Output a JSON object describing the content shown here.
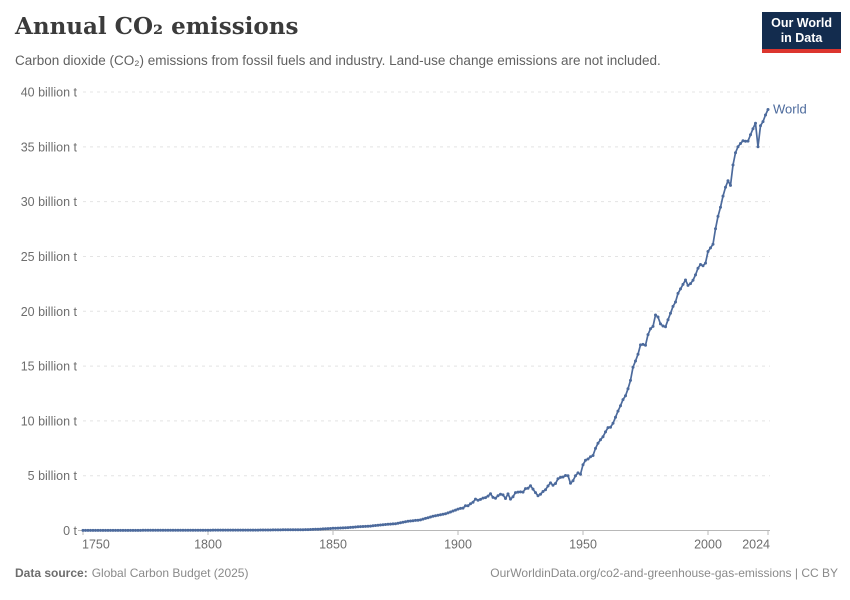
{
  "header": {
    "title": "Annual CO₂ emissions",
    "subtitle": "Carbon dioxide (CO₂) emissions from fossil fuels and industry. Land-use change emissions are not included.",
    "logo_line1": "Our World",
    "logo_line2": "in Data"
  },
  "footer": {
    "source_label": "Data source:",
    "source_value": "Global Carbon Budget (2025)",
    "attribution": "OurWorldinData.org/co2-and-greenhouse-gas-emissions | CC BY"
  },
  "colors": {
    "series": "#4c6a9c",
    "grid": "#e4e4e4",
    "axis": "#b8b8b8",
    "logo_navy": "#132c4e",
    "logo_red": "#dc352e"
  },
  "chart_data": {
    "type": "line",
    "title": "Annual CO₂ emissions",
    "xlabel": "",
    "ylabel": "",
    "xlim": [
      1750,
      2024
    ],
    "ylim": [
      0,
      40
    ],
    "grid": "horizontal-dashed",
    "legend_position": "end-of-line-label",
    "xticks": [
      1750,
      1800,
      1850,
      1900,
      1950,
      2000,
      2024
    ],
    "yticks": [
      {
        "value": 0,
        "label": "0 t"
      },
      {
        "value": 5,
        "label": "5 billion t"
      },
      {
        "value": 10,
        "label": "10 billion t"
      },
      {
        "value": 15,
        "label": "15 billion t"
      },
      {
        "value": 20,
        "label": "20 billion t"
      },
      {
        "value": 25,
        "label": "25 billion t"
      },
      {
        "value": 30,
        "label": "30 billion t"
      },
      {
        "value": 35,
        "label": "35 billion t"
      },
      {
        "value": 40,
        "label": "40 billion t"
      }
    ],
    "series": [
      {
        "name": "World",
        "color": "#4c6a9c",
        "unit": "billion tonnes CO₂",
        "points": [
          [
            1750,
            0.01
          ],
          [
            1760,
            0.01
          ],
          [
            1770,
            0.01
          ],
          [
            1780,
            0.02
          ],
          [
            1790,
            0.02
          ],
          [
            1800,
            0.03
          ],
          [
            1810,
            0.04
          ],
          [
            1820,
            0.04
          ],
          [
            1830,
            0.06
          ],
          [
            1840,
            0.08
          ],
          [
            1845,
            0.13
          ],
          [
            1850,
            0.2
          ],
          [
            1855,
            0.25
          ],
          [
            1860,
            0.34
          ],
          [
            1865,
            0.4
          ],
          [
            1870,
            0.53
          ],
          [
            1875,
            0.62
          ],
          [
            1880,
            0.84
          ],
          [
            1885,
            0.97
          ],
          [
            1890,
            1.3
          ],
          [
            1895,
            1.52
          ],
          [
            1900,
            1.95
          ],
          [
            1901,
            2.02
          ],
          [
            1902,
            2.04
          ],
          [
            1903,
            2.25
          ],
          [
            1904,
            2.26
          ],
          [
            1905,
            2.44
          ],
          [
            1906,
            2.58
          ],
          [
            1907,
            2.86
          ],
          [
            1908,
            2.76
          ],
          [
            1909,
            2.84
          ],
          [
            1910,
            2.96
          ],
          [
            1911,
            3.0
          ],
          [
            1912,
            3.14
          ],
          [
            1913,
            3.35
          ],
          [
            1914,
            3.02
          ],
          [
            1915,
            2.95
          ],
          [
            1916,
            3.17
          ],
          [
            1917,
            3.31
          ],
          [
            1918,
            3.25
          ],
          [
            1919,
            2.92
          ],
          [
            1920,
            3.34
          ],
          [
            1921,
            2.86
          ],
          [
            1922,
            3.08
          ],
          [
            1923,
            3.46
          ],
          [
            1924,
            3.5
          ],
          [
            1925,
            3.52
          ],
          [
            1926,
            3.5
          ],
          [
            1927,
            3.82
          ],
          [
            1928,
            3.86
          ],
          [
            1929,
            4.08
          ],
          [
            1930,
            3.78
          ],
          [
            1931,
            3.46
          ],
          [
            1932,
            3.17
          ],
          [
            1933,
            3.31
          ],
          [
            1934,
            3.56
          ],
          [
            1935,
            3.72
          ],
          [
            1936,
            4.06
          ],
          [
            1937,
            4.34
          ],
          [
            1938,
            4.13
          ],
          [
            1939,
            4.29
          ],
          [
            1940,
            4.72
          ],
          [
            1941,
            4.84
          ],
          [
            1942,
            4.88
          ],
          [
            1943,
            5.02
          ],
          [
            1944,
            5.0
          ],
          [
            1945,
            4.31
          ],
          [
            1946,
            4.54
          ],
          [
            1947,
            5.0
          ],
          [
            1948,
            5.25
          ],
          [
            1949,
            5.14
          ],
          [
            1950,
            6.0
          ],
          [
            1951,
            6.4
          ],
          [
            1952,
            6.52
          ],
          [
            1953,
            6.72
          ],
          [
            1954,
            6.84
          ],
          [
            1955,
            7.49
          ],
          [
            1956,
            7.96
          ],
          [
            1957,
            8.28
          ],
          [
            1958,
            8.56
          ],
          [
            1959,
            8.99
          ],
          [
            1960,
            9.39
          ],
          [
            1961,
            9.42
          ],
          [
            1962,
            9.78
          ],
          [
            1963,
            10.33
          ],
          [
            1964,
            10.89
          ],
          [
            1965,
            11.38
          ],
          [
            1966,
            11.94
          ],
          [
            1967,
            12.29
          ],
          [
            1968,
            12.93
          ],
          [
            1969,
            13.69
          ],
          [
            1970,
            14.9
          ],
          [
            1971,
            15.46
          ],
          [
            1972,
            16.07
          ],
          [
            1973,
            16.93
          ],
          [
            1974,
            16.98
          ],
          [
            1975,
            16.89
          ],
          [
            1976,
            17.87
          ],
          [
            1977,
            18.4
          ],
          [
            1978,
            18.62
          ],
          [
            1979,
            19.66
          ],
          [
            1980,
            19.48
          ],
          [
            1981,
            18.85
          ],
          [
            1982,
            18.65
          ],
          [
            1983,
            18.58
          ],
          [
            1984,
            19.22
          ],
          [
            1985,
            19.81
          ],
          [
            1986,
            20.44
          ],
          [
            1987,
            20.84
          ],
          [
            1988,
            21.63
          ],
          [
            1989,
            22.04
          ],
          [
            1990,
            22.45
          ],
          [
            1991,
            22.85
          ],
          [
            1992,
            22.36
          ],
          [
            1993,
            22.52
          ],
          [
            1994,
            22.83
          ],
          [
            1995,
            23.32
          ],
          [
            1996,
            23.93
          ],
          [
            1997,
            24.26
          ],
          [
            1998,
            24.15
          ],
          [
            1999,
            24.39
          ],
          [
            2000,
            25.45
          ],
          [
            2001,
            25.78
          ],
          [
            2002,
            26.12
          ],
          [
            2003,
            27.52
          ],
          [
            2004,
            28.65
          ],
          [
            2005,
            29.49
          ],
          [
            2006,
            30.5
          ],
          [
            2007,
            31.31
          ],
          [
            2008,
            31.9
          ],
          [
            2009,
            31.48
          ],
          [
            2010,
            33.34
          ],
          [
            2011,
            34.46
          ],
          [
            2012,
            35.01
          ],
          [
            2013,
            35.3
          ],
          [
            2014,
            35.56
          ],
          [
            2015,
            35.5
          ],
          [
            2016,
            35.52
          ],
          [
            2017,
            36.1
          ],
          [
            2018,
            36.65
          ],
          [
            2019,
            37.15
          ],
          [
            2020,
            35.0
          ],
          [
            2021,
            36.93
          ],
          [
            2022,
            37.3
          ],
          [
            2023,
            37.9
          ],
          [
            2024,
            38.4
          ]
        ]
      }
    ]
  }
}
